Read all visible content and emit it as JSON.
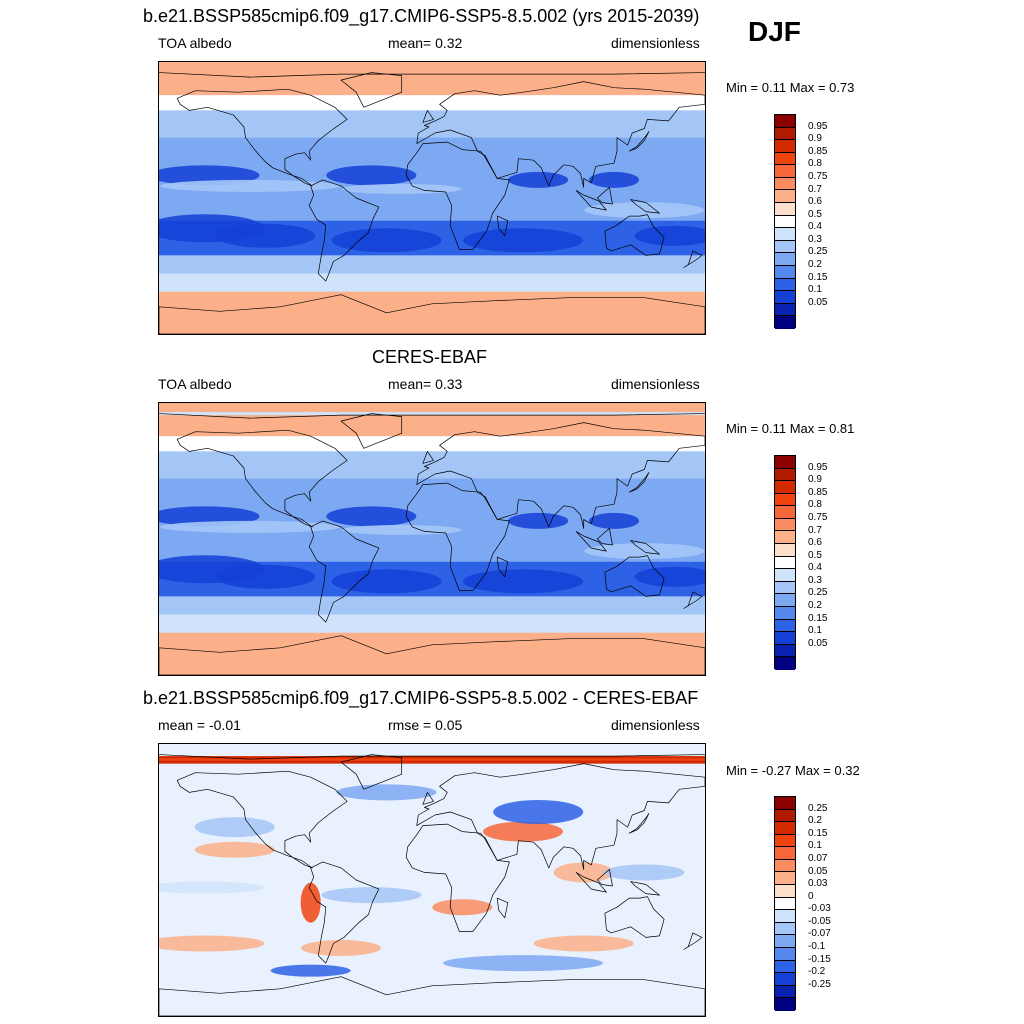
{
  "season": "DJF",
  "panels": [
    {
      "title": "b.e21.BSSP585cmip6.f09_g17.CMIP6-SSP5-8.5.002 (yrs 2015-2039)",
      "left": "TOA albedo",
      "center": "mean=   0.32",
      "right": "dimensionless",
      "minmax": "Min =   0.11 Max =   0.73",
      "theme": "model"
    },
    {
      "title": "CERES-EBAF",
      "left": "TOA albedo",
      "center": "mean=   0.33",
      "right": "dimensionless",
      "minmax": "Min =   0.11 Max =   0.81",
      "theme": "obs"
    },
    {
      "title": "b.e21.BSSP585cmip6.f09_g17.CMIP6-SSP5-8.5.002 - CERES-EBAF",
      "left": "mean =  -0.01",
      "center": "rmse =   0.05",
      "right": "dimensionless",
      "minmax": "Min =  -0.27 Max =   0.32",
      "theme": "diff"
    }
  ],
  "colorbars": {
    "albedo": {
      "labels": [
        "0.95",
        "0.9",
        "0.85",
        "0.8",
        "0.75",
        "0.7",
        "0.6",
        "0.5",
        "0.4",
        "0.3",
        "0.25",
        "0.2",
        "0.15",
        "0.1",
        "0.05"
      ],
      "colors": [
        "#8b0000",
        "#b01a00",
        "#d42a00",
        "#f04410",
        "#f6683a",
        "#fa8c62",
        "#fcb08a",
        "#fde0cc",
        "#ffffff",
        "#cfe4fb",
        "#a4c6f7",
        "#7da8f2",
        "#5588ee",
        "#2d62e6",
        "#1440d6",
        "#0a22b0",
        "#000080"
      ]
    },
    "diff": {
      "labels": [
        "0.25",
        "0.2",
        "0.15",
        "0.1",
        "0.07",
        "0.05",
        "0.03",
        "0",
        "-0.03",
        "-0.05",
        "-0.07",
        "-0.1",
        "-0.15",
        "-0.2",
        "-0.25"
      ],
      "colors": [
        "#8b0000",
        "#b01a00",
        "#d42a00",
        "#f04410",
        "#f6683a",
        "#fa8c62",
        "#fcb08a",
        "#fde0cc",
        "#ffffff",
        "#cfe4fb",
        "#a4c6f7",
        "#7da8f2",
        "#5588ee",
        "#2d62e6",
        "#1440d6",
        "#0a22b0",
        "#000080"
      ]
    }
  }
}
